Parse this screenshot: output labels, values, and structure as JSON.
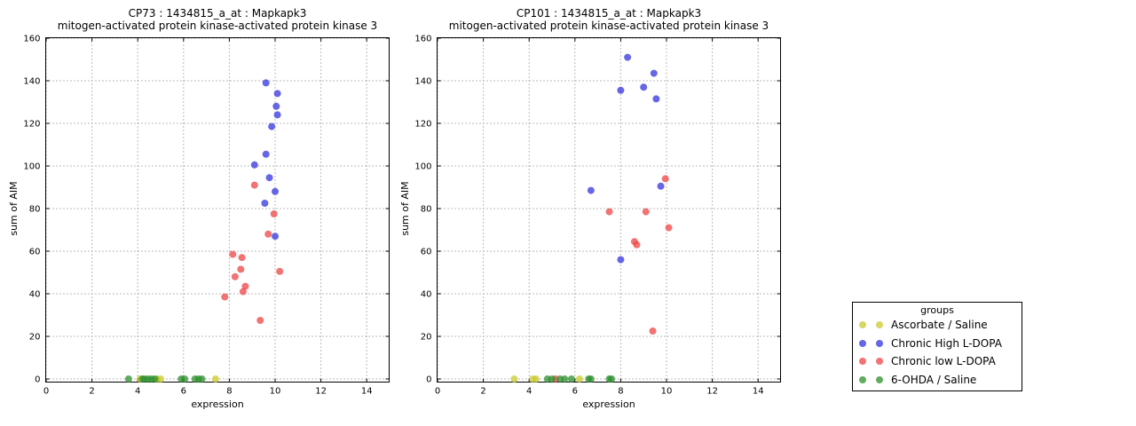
{
  "figure": {
    "background": "#ffffff",
    "axis_color": "#000000",
    "grid_color": "#777777",
    "marker_opacity": 0.75
  },
  "legend": {
    "title": "groups",
    "items": [
      {
        "label": "Ascorbate / Saline",
        "color": "#c9c92e"
      },
      {
        "label": "Chronic High L-DOPA",
        "color": "#3333dd"
      },
      {
        "label": "Chronic low L-DOPA",
        "color": "#ee4444"
      },
      {
        "label": "6-OHDA / Saline",
        "color": "#2d8f2d"
      }
    ]
  },
  "chart_data": [
    {
      "type": "scatter",
      "title": "CP73 : 1434815_a_at : Mapkapk3",
      "subtitle": "mitogen-activated protein kinase-activated protein kinase 3",
      "xlabel": "expression",
      "ylabel": "sum of AIM",
      "xlim": [
        0,
        15
      ],
      "ylim": [
        0,
        160
      ],
      "xticks": [
        0,
        2,
        4,
        6,
        8,
        10,
        12,
        14
      ],
      "yticks": [
        0,
        20,
        40,
        60,
        80,
        100,
        120,
        140,
        160
      ],
      "grid": true,
      "legend_position": "outside-right",
      "series": [
        {
          "name": "Ascorbate / Saline",
          "color": "#c9c92e",
          "points": [
            [
              4.1,
              0
            ],
            [
              4.85,
              0
            ],
            [
              5.0,
              0
            ],
            [
              7.4,
              0
            ]
          ]
        },
        {
          "name": "Chronic High L-DOPA",
          "color": "#3333dd",
          "points": [
            [
              9.6,
              139
            ],
            [
              10.1,
              134
            ],
            [
              10.05,
              128
            ],
            [
              10.1,
              124
            ],
            [
              9.85,
              118.5
            ],
            [
              9.6,
              105.5
            ],
            [
              9.1,
              100.5
            ],
            [
              9.75,
              94.5
            ],
            [
              10.0,
              88
            ],
            [
              9.55,
              82.5
            ],
            [
              10.0,
              67
            ]
          ]
        },
        {
          "name": "Chronic low L-DOPA",
          "color": "#ee4444",
          "points": [
            [
              9.1,
              91
            ],
            [
              9.95,
              77.5
            ],
            [
              9.7,
              68
            ],
            [
              8.15,
              58.5
            ],
            [
              8.55,
              57
            ],
            [
              8.5,
              51.5
            ],
            [
              10.2,
              50.5
            ],
            [
              8.25,
              48
            ],
            [
              8.7,
              43.5
            ],
            [
              8.6,
              41
            ],
            [
              7.8,
              38.5
            ],
            [
              9.35,
              27.5
            ]
          ]
        },
        {
          "name": "6-OHDA / Saline",
          "color": "#2d8f2d",
          "points": [
            [
              3.6,
              0
            ],
            [
              4.2,
              0
            ],
            [
              4.3,
              0
            ],
            [
              4.45,
              0
            ],
            [
              4.6,
              0
            ],
            [
              4.75,
              0
            ],
            [
              5.9,
              0
            ],
            [
              6.05,
              0
            ],
            [
              6.5,
              0
            ],
            [
              6.65,
              0
            ],
            [
              6.8,
              0
            ]
          ]
        }
      ]
    },
    {
      "type": "scatter",
      "title": "CP101 : 1434815_a_at : Mapkapk3",
      "subtitle": "mitogen-activated protein kinase-activated protein kinase 3",
      "xlabel": "expression",
      "ylabel": "sum of AIM",
      "xlim": [
        0,
        15
      ],
      "ylim": [
        0,
        160
      ],
      "xticks": [
        0,
        2,
        4,
        6,
        8,
        10,
        12,
        14
      ],
      "yticks": [
        0,
        20,
        40,
        60,
        80,
        100,
        120,
        140,
        160
      ],
      "grid": true,
      "legend_position": "outside-right",
      "series": [
        {
          "name": "Ascorbate / Saline",
          "color": "#c9c92e",
          "points": [
            [
              3.35,
              0
            ],
            [
              4.15,
              0
            ],
            [
              4.3,
              0
            ],
            [
              6.2,
              0
            ]
          ]
        },
        {
          "name": "Chronic High L-DOPA",
          "color": "#3333dd",
          "points": [
            [
              8.3,
              151
            ],
            [
              9.45,
              143.5
            ],
            [
              9.0,
              137
            ],
            [
              8.0,
              135.5
            ],
            [
              9.55,
              131.5
            ],
            [
              9.75,
              90.5
            ],
            [
              6.7,
              88.5
            ],
            [
              8.0,
              56
            ]
          ]
        },
        {
          "name": "Chronic low L-DOPA",
          "color": "#ee4444",
          "points": [
            [
              9.95,
              94
            ],
            [
              9.1,
              78.5
            ],
            [
              7.5,
              78.5
            ],
            [
              10.1,
              71
            ],
            [
              8.6,
              64.5
            ],
            [
              8.7,
              63
            ],
            [
              9.4,
              22.5
            ],
            [
              5.15,
              0
            ]
          ]
        },
        {
          "name": "6-OHDA / Saline",
          "color": "#2d8f2d",
          "points": [
            [
              4.8,
              0
            ],
            [
              5.0,
              0
            ],
            [
              5.35,
              0
            ],
            [
              5.55,
              0
            ],
            [
              5.85,
              0
            ],
            [
              6.6,
              0
            ],
            [
              6.7,
              0
            ],
            [
              7.5,
              0
            ],
            [
              7.6,
              0
            ]
          ]
        }
      ]
    }
  ]
}
